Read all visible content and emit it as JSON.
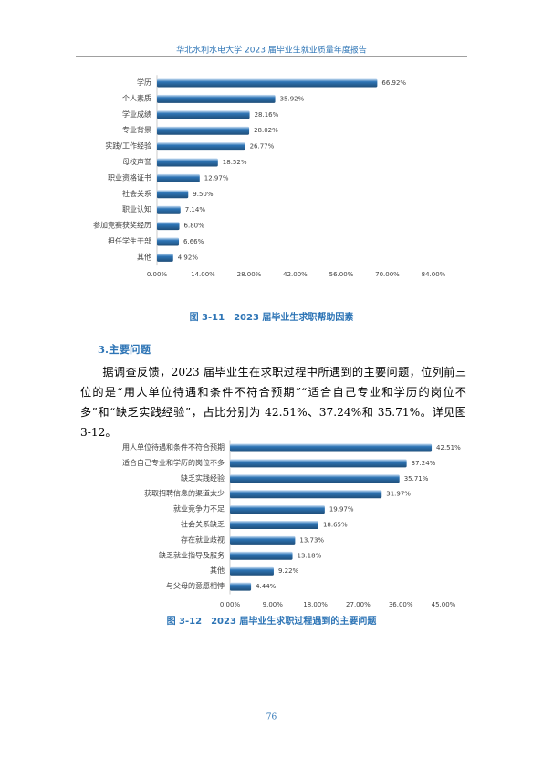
{
  "header": {
    "title": "华北水利水电大学 2023 届毕业生就业质量年度报告"
  },
  "chart_data": [
    {
      "type": "hbar",
      "title": "图 3-11　2023 届毕业生求职帮助因素",
      "color": "#2e75b6",
      "categories": [
        "学历",
        "个人素质",
        "学业成绩",
        "专业背景",
        "实践/工作经验",
        "母校声誉",
        "职业资格证书",
        "社会关系",
        "职业认知",
        "参加竞赛获奖经历",
        "担任学生干部",
        "其他"
      ],
      "values": [
        66.92,
        35.92,
        28.16,
        28.02,
        26.77,
        18.52,
        12.97,
        9.5,
        7.14,
        6.8,
        6.66,
        4.92
      ],
      "value_labels": [
        "66.92%",
        "35.92%",
        "28.16%",
        "28.02%",
        "26.77%",
        "18.52%",
        "12.97%",
        "9.50%",
        "7.14%",
        "6.80%",
        "6.66%",
        "4.92%"
      ],
      "xlim": [
        0,
        84
      ],
      "xticks": [
        {
          "value": 0,
          "label": "0.00%"
        },
        {
          "value": 14,
          "label": "14.00%"
        },
        {
          "value": 28,
          "label": "28.00%"
        },
        {
          "value": 42,
          "label": "42.00%"
        },
        {
          "value": 56,
          "label": "56.00%"
        },
        {
          "value": 70,
          "label": "70.00%"
        },
        {
          "value": 84,
          "label": "84.00%"
        }
      ]
    },
    {
      "type": "hbar",
      "title": "图 3-12　2023 届毕业生求职过程遇到的主要问题",
      "color": "#2e75b6",
      "categories": [
        "用人单位待遇和条件不符合预期",
        "适合自己专业和学历的岗位不多",
        "缺乏实践经验",
        "获取招聘信息的渠道太少",
        "就业竞争力不足",
        "社会关系缺乏",
        "存在就业歧视",
        "缺乏就业指导及服务",
        "其他",
        "与父母的意愿相悖"
      ],
      "values": [
        42.51,
        37.24,
        35.71,
        31.97,
        19.97,
        18.65,
        13.73,
        13.18,
        9.22,
        4.44
      ],
      "value_labels": [
        "42.51%",
        "37.24%",
        "35.71%",
        "31.97%",
        "19.97%",
        "18.65%",
        "13.73%",
        "13.18%",
        "9.22%",
        "4.44%"
      ],
      "xlim": [
        0,
        45
      ],
      "xticks": [
        {
          "value": 0,
          "label": "0.00%"
        },
        {
          "value": 9,
          "label": "9.00%"
        },
        {
          "value": 18,
          "label": "18.00%"
        },
        {
          "value": 27,
          "label": "27.00%"
        },
        {
          "value": 36,
          "label": "36.00%"
        },
        {
          "value": 45,
          "label": "45.00%"
        }
      ]
    }
  ],
  "section": {
    "heading": "3.主要问题",
    "paragraph": "据调查反馈，2023 届毕业生在求职过程中所遇到的主要问题，位列前三位的是“用人单位待遇和条件不符合预期”“适合自己专业和学历的岗位不多”和“缺乏实践经验”，占比分别为 42.51%、37.24%和 35.71%。详见图 3-12。"
  },
  "page_number": "76"
}
